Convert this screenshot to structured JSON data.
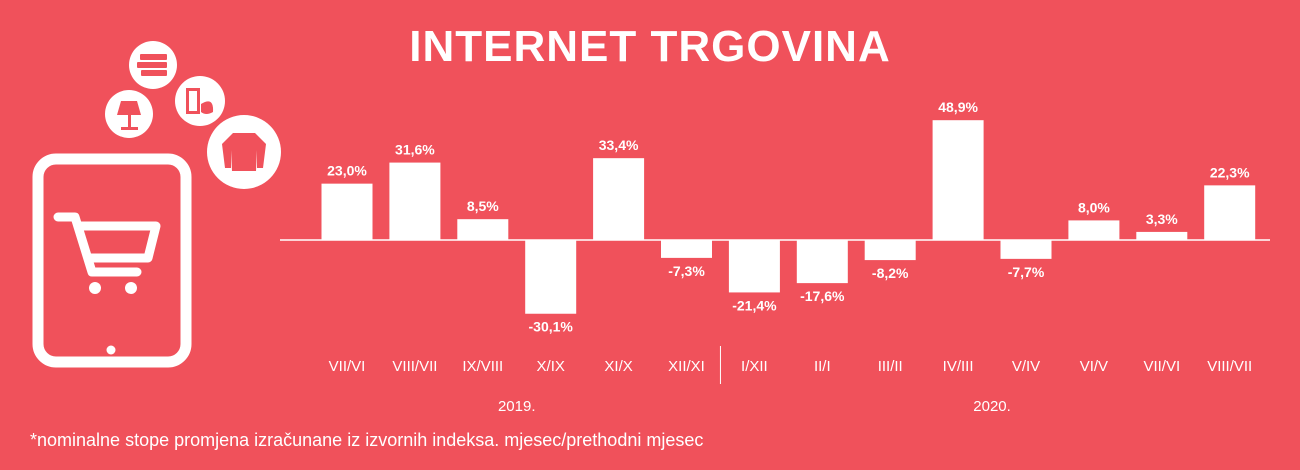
{
  "title": "INTERNET TRGOVINA",
  "footnote": "*nominalne stope promjena izračunane iz izvornih indeksa. mjesec/prethodni mjesec",
  "colors": {
    "background": "#f0515b",
    "bar": "#ffffff",
    "text": "#ffffff"
  },
  "icons": [
    "tablet-icon",
    "shopping-cart-icon",
    "books-icon",
    "lamp-icon",
    "perfume-icon",
    "sweater-icon"
  ],
  "chart_data": {
    "type": "bar",
    "categories": [
      "VII/VI",
      "VIII/VII",
      "IX/VIII",
      "X/IX",
      "XI/X",
      "XII/XI",
      "I/XII",
      "II/I",
      "III/II",
      "IV/III",
      "V/IV",
      "VI/V",
      "VII/VI",
      "VIII/VII"
    ],
    "values": [
      23.0,
      31.6,
      8.5,
      -30.1,
      33.4,
      -7.3,
      -21.4,
      -17.6,
      -8.2,
      48.9,
      -7.7,
      8.0,
      3.3,
      22.3
    ],
    "value_labels": [
      "23,0%",
      "31,6%",
      "8,5%",
      "-30,1%",
      "33,4%",
      "-7,3%",
      "-21,4%",
      "-17,6%",
      "-8,2%",
      "48,9%",
      "-7,7%",
      "8,0%",
      "3,3%",
      "22,3%"
    ],
    "groups": [
      {
        "label": "2019.",
        "categories": 6
      },
      {
        "label": "2020.",
        "categories": 8
      }
    ],
    "title": "INTERNET TRGOVINA",
    "grid": false,
    "legend": "none"
  }
}
